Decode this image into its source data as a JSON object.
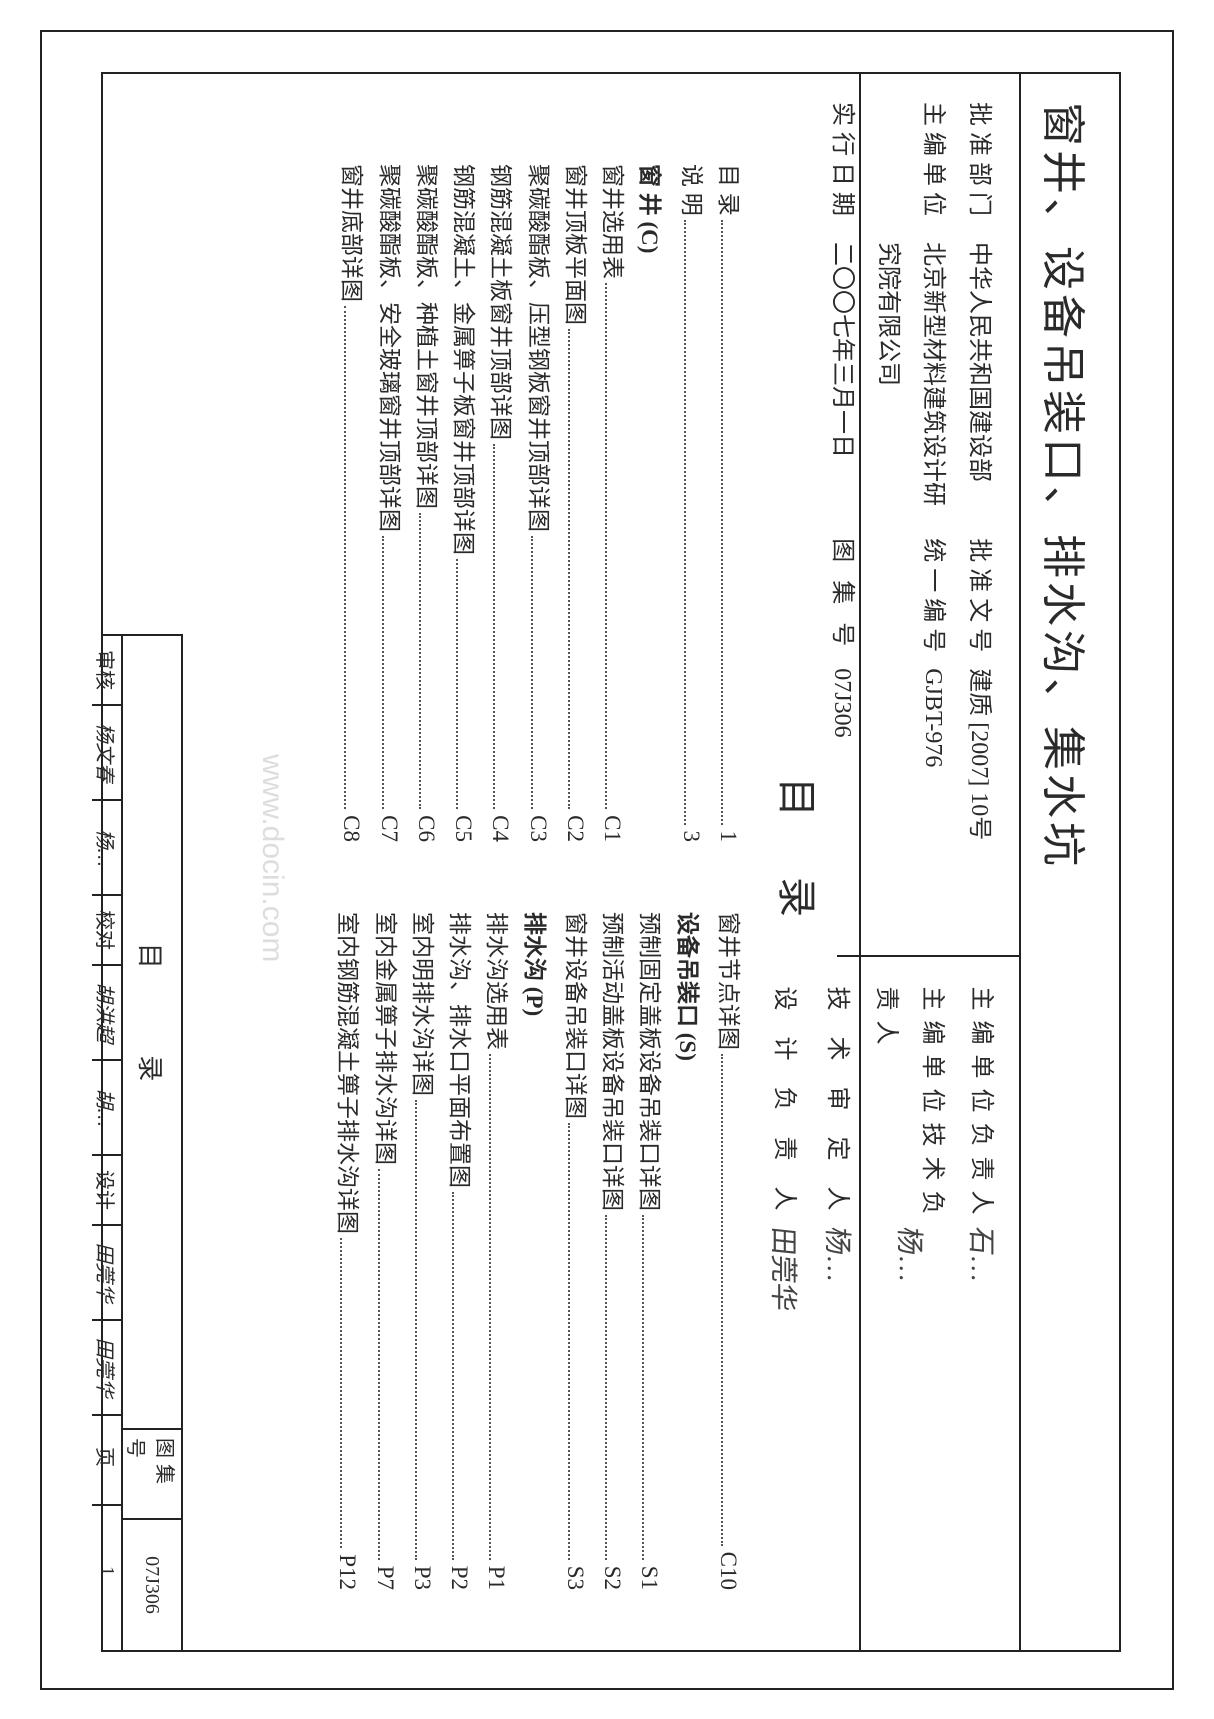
{
  "title": "窗井、设备吊装口、排水沟、集水坑",
  "meta_left": [
    {
      "k": "批准部门",
      "v": "中华人民共和国建设部",
      "k2": "批准文号",
      "v2": "建质 [2007] 10号"
    },
    {
      "k": "主编单位",
      "v": "北京新型材料建筑设计研究院有限公司",
      "k2": "统一编号",
      "v2": "GJBT-976"
    },
    {
      "k": "实行日期",
      "v": "二〇〇七年三月一日",
      "k2": "图 集 号",
      "v2": "07J306"
    }
  ],
  "meta_right": [
    {
      "k": "主编单位负责人",
      "sig": "石…"
    },
    {
      "k": "主编单位技术负责人",
      "sig": "杨…"
    },
    {
      "k": "技 术 审 定 人",
      "sig": "杨…"
    },
    {
      "k": "设 计 负 责 人",
      "sig": "田莞华"
    }
  ],
  "toc_heading": "目录",
  "toc_left": [
    {
      "t": "目 录",
      "pg": "1"
    },
    {
      "t": "说 明",
      "pg": "3"
    },
    {
      "t": "窗 井 (C)",
      "section": true
    },
    {
      "t": "窗井选用表",
      "pg": "C1"
    },
    {
      "t": "窗井顶板平面图",
      "pg": "C2"
    },
    {
      "t": "聚碳酸酯板、压型钢板窗井顶部详图",
      "pg": "C3"
    },
    {
      "t": "钢筋混凝土板窗井顶部详图",
      "pg": "C4"
    },
    {
      "t": "钢筋混凝土、金属箅子板窗井顶部详图",
      "pg": "C5"
    },
    {
      "t": "聚碳酸酯板、种植土窗井顶部详图",
      "pg": "C6"
    },
    {
      "t": "聚碳酸酯板、安全玻璃窗井顶部详图",
      "pg": "C7"
    },
    {
      "t": "窗井底部详图",
      "pg": "C8"
    }
  ],
  "toc_right": [
    {
      "t": "窗井节点详图",
      "pg": "C10"
    },
    {
      "t": "设备吊装口 (S)",
      "section": true
    },
    {
      "t": "预制固定盖板设备吊装口详图",
      "pg": "S1"
    },
    {
      "t": "预制活动盖板设备吊装口详图",
      "pg": "S2"
    },
    {
      "t": "窗井设备吊装口详图",
      "pg": "S3"
    },
    {
      "t": "排水沟 (P)",
      "section": true
    },
    {
      "t": "排水沟选用表",
      "pg": "P1"
    },
    {
      "t": "排水沟、排水口平面布置图",
      "pg": "P2"
    },
    {
      "t": "室内明排水沟详图",
      "pg": "P3"
    },
    {
      "t": "室内金属箅子排水沟详图",
      "pg": "P7"
    },
    {
      "t": "室内钢筋混凝土箅子排水沟详图",
      "pg": "P12"
    }
  ],
  "titleblock": {
    "heading": "目 录",
    "album_k": "图集号",
    "album_v": "07J306",
    "page_k": "页",
    "page_v": "1",
    "roles": [
      {
        "k": "审核",
        "v": "杨文春"
      },
      {
        "k": "",
        "v": "杨…"
      },
      {
        "k": "校对",
        "v": "胡洪超"
      },
      {
        "k": "",
        "v": "胡…"
      },
      {
        "k": "设计",
        "v": "田莞华"
      },
      {
        "k": "",
        "v": "田莞华"
      }
    ]
  },
  "watermark": "www.docin.com"
}
